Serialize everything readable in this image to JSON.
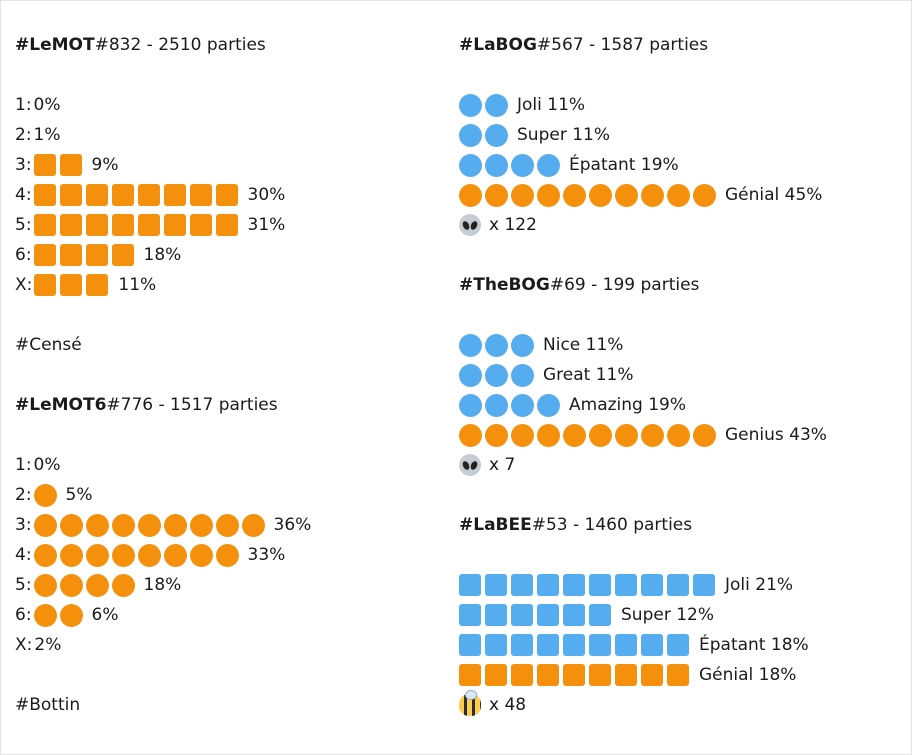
{
  "colors": {
    "orange": "#f4900c",
    "blue": "#55acee"
  },
  "left": {
    "lemot": {
      "tag": "#LeMOT",
      "info": " #832 - 2510 parties",
      "rows": [
        {
          "label": "1: ",
          "count": 0,
          "pct": "0%",
          "shape": "square"
        },
        {
          "label": "2: ",
          "count": 0,
          "pct": "1%",
          "shape": "square"
        },
        {
          "label": "3: ",
          "count": 2,
          "pct": "9%",
          "shape": "square"
        },
        {
          "label": "4: ",
          "count": 8,
          "pct": "30%",
          "shape": "square"
        },
        {
          "label": "5: ",
          "count": 8,
          "pct": "31%",
          "shape": "square"
        },
        {
          "label": "6: ",
          "count": 4,
          "pct": "18%",
          "shape": "square"
        },
        {
          "label": "X: ",
          "count": 3,
          "pct": "11%",
          "shape": "square"
        }
      ]
    },
    "word1": "#Censé",
    "lemot6": {
      "tag": "#LeMOT6",
      "info": " #776 - 1517 parties",
      "rows": [
        {
          "label": "1: ",
          "count": 0,
          "pct": "0%",
          "shape": "circle"
        },
        {
          "label": "2: ",
          "count": 1,
          "pct": "5%",
          "shape": "circle"
        },
        {
          "label": "3: ",
          "count": 9,
          "pct": "36%",
          "shape": "circle"
        },
        {
          "label": "4: ",
          "count": 8,
          "pct": "33%",
          "shape": "circle"
        },
        {
          "label": "5: ",
          "count": 4,
          "pct": "18%",
          "shape": "circle"
        },
        {
          "label": "6: ",
          "count": 2,
          "pct": "6%",
          "shape": "circle"
        },
        {
          "label": "X: ",
          "count": 0,
          "pct": "2%",
          "shape": "circle"
        }
      ]
    },
    "word2": "#Bottin"
  },
  "right": {
    "labog": {
      "tag": "#LaBOG",
      "info": " #567 - 1587 parties",
      "rows": [
        {
          "count": 2,
          "color": "blue",
          "shape": "circle",
          "label": "Joli 11%"
        },
        {
          "count": 2,
          "color": "blue",
          "shape": "circle",
          "label": "Super 11%"
        },
        {
          "count": 4,
          "color": "blue",
          "shape": "circle",
          "label": "Épatant 19%"
        },
        {
          "count": 10,
          "color": "orange",
          "shape": "circle",
          "label": "Génial 45%"
        }
      ],
      "footer_icon": "alien-icon",
      "footer": "x 122"
    },
    "thebog": {
      "tag": "#TheBOG",
      "info": " #69 - 199 parties",
      "rows": [
        {
          "count": 3,
          "color": "blue",
          "shape": "circle",
          "label": "Nice 11%"
        },
        {
          "count": 3,
          "color": "blue",
          "shape": "circle",
          "label": "Great 11%"
        },
        {
          "count": 4,
          "color": "blue",
          "shape": "circle",
          "label": "Amazing 19%"
        },
        {
          "count": 10,
          "color": "orange",
          "shape": "circle",
          "label": "Genius 43%"
        }
      ],
      "footer_icon": "alien-icon",
      "footer": "x 7"
    },
    "labee": {
      "tag": "#LaBEE",
      "info": " #53 - 1460 parties",
      "rows": [
        {
          "count": 10,
          "color": "blue",
          "shape": "square",
          "label": "Joli 21%"
        },
        {
          "count": 6,
          "color": "blue",
          "shape": "square",
          "label": "Super 12%"
        },
        {
          "count": 9,
          "color": "blue",
          "shape": "square",
          "label": "Épatant 18%"
        },
        {
          "count": 9,
          "color": "orange",
          "shape": "square",
          "label": "Génial 18%"
        }
      ],
      "footer_icon": "bee-icon",
      "footer": "x 48"
    }
  }
}
